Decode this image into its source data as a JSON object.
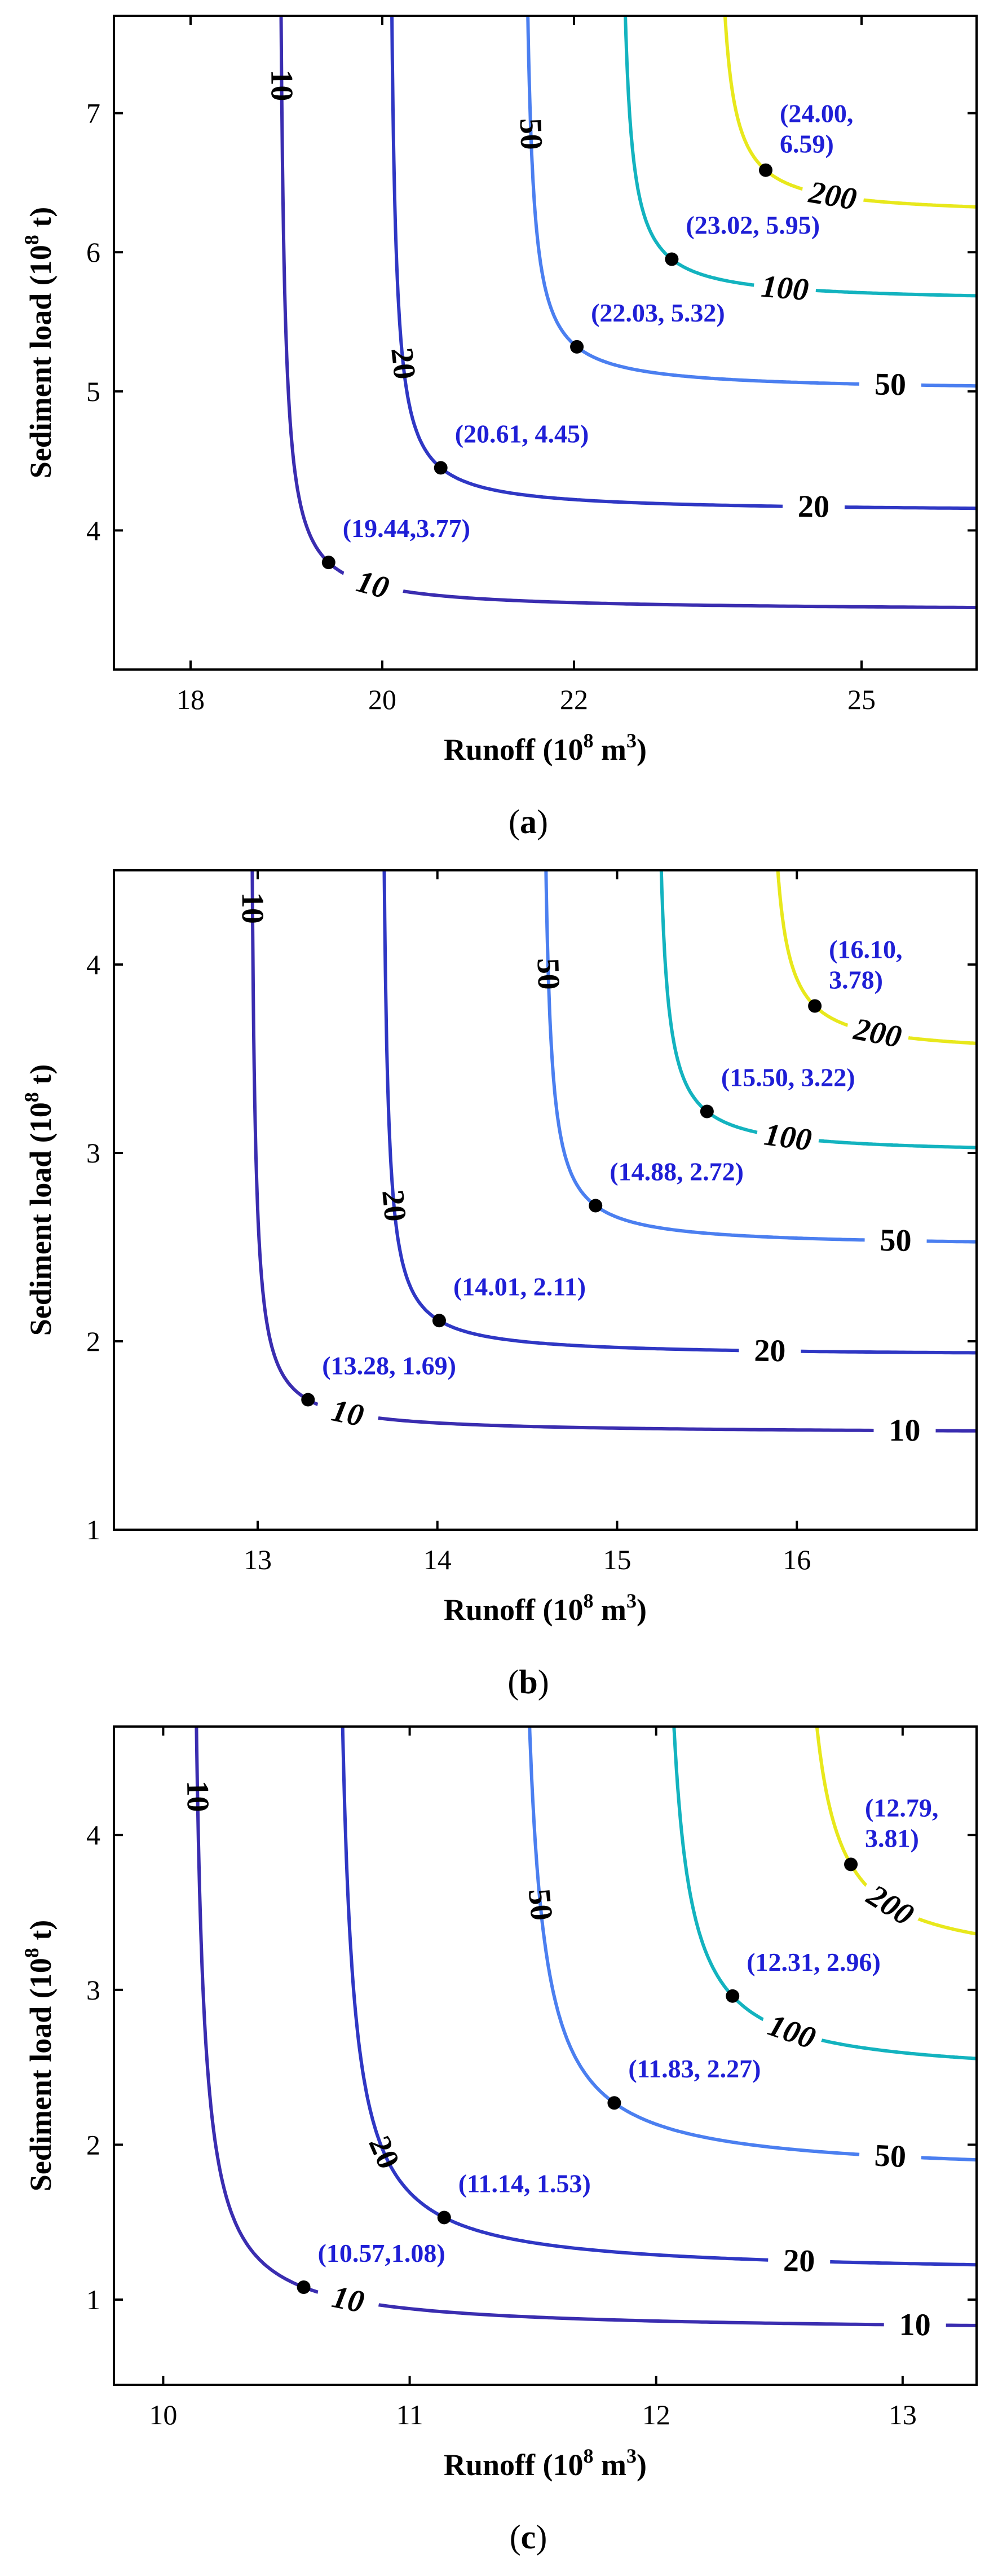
{
  "colors": {
    "10": "#3a2db0",
    "20": "#2f37c4",
    "50": "#4b7ff0",
    "100": "#13b3bf",
    "200": "#e8e81c",
    "annotation": "#1f1fd6"
  },
  "chart_data": [
    {
      "type": "contour",
      "panel_label": "(a)",
      "panel_letter": "a",
      "xlabel": "Runoff (10^8 m^3)",
      "xlabel_base": "Runoff (10",
      "xlabel_exp1": "8",
      "xlabel_mid": " m",
      "xlabel_exp2": "3",
      "xlabel_end": ")",
      "ylabel": "Sediment load (10^8 t)",
      "ylabel_base": "Sediment load (10",
      "ylabel_exp": "8",
      "ylabel_end": " t)",
      "xlim": [
        17.2,
        26.2
      ],
      "ylim": [
        3.0,
        7.7
      ],
      "xticks": [
        {
          "value": 18,
          "label": "18"
        },
        {
          "value": 20,
          "label": "20"
        },
        {
          "value": 22,
          "label": "22"
        },
        {
          "value": 25,
          "label": "25"
        }
      ],
      "yticks": [
        {
          "value": 4,
          "label": "4"
        },
        {
          "value": 5,
          "label": "5"
        },
        {
          "value": 6,
          "label": "6"
        },
        {
          "value": 7,
          "label": "7"
        }
      ],
      "contours": [
        {
          "level": 10,
          "label": "10",
          "color_key": "10",
          "x_asym": 18.9,
          "y_asym": 3.42,
          "point": [
            19.44,
            3.77
          ],
          "vlabel_y": 7.2,
          "hlabel_x": 19.9
        },
        {
          "level": 20,
          "label": "20",
          "color_key": "20",
          "x_asym": 20.05,
          "y_asym": 4.13,
          "point": [
            20.61,
            4.45
          ],
          "vlabel_y": 5.2,
          "hlabel_x": 24.5
        },
        {
          "level": 50,
          "label": "50",
          "color_key": "50",
          "x_asym": 21.45,
          "y_asym": 5.0,
          "point": [
            22.03,
            5.32
          ],
          "vlabel_y": 6.85,
          "hlabel_x": 25.3
        },
        {
          "level": 100,
          "label": "100",
          "color_key": "100",
          "x_asym": 22.45,
          "y_asym": 5.64,
          "point": [
            23.02,
            5.95
          ],
          "vlabel_y": null,
          "hlabel_x": 24.2
        },
        {
          "level": 200,
          "label": "200",
          "color_key": "200",
          "x_asym": 23.45,
          "y_asym": 6.26,
          "point": [
            24.0,
            6.59
          ],
          "vlabel_y": null,
          "hlabel_x": 24.7
        }
      ],
      "annotations": [
        {
          "text": "(19.44,3.77)"
        },
        {
          "text": "(20.61, 4.45)"
        },
        {
          "text": "(22.03, 5.32)"
        },
        {
          "text": "(23.02, 5.95)"
        },
        {
          "lines": [
            "(24.00,",
            "6.59)"
          ]
        }
      ]
    },
    {
      "type": "contour",
      "panel_label": "(b)",
      "panel_letter": "b",
      "xlabel": "Runoff (10^8 m^3)",
      "xlabel_base": "Runoff (10",
      "xlabel_exp1": "8",
      "xlabel_mid": " m",
      "xlabel_exp2": "3",
      "xlabel_end": ")",
      "ylabel": "Sediment load (10^8 t)",
      "ylabel_base": "Sediment load (10",
      "ylabel_exp": "8",
      "ylabel_end": " t)",
      "xlim": [
        12.2,
        17.0
      ],
      "ylim": [
        1.0,
        4.5
      ],
      "xticks": [
        {
          "value": 13,
          "label": "13"
        },
        {
          "value": 14,
          "label": "14"
        },
        {
          "value": 15,
          "label": "15"
        },
        {
          "value": 16,
          "label": "16"
        }
      ],
      "yticks": [
        {
          "value": 1,
          "label": "1"
        },
        {
          "value": 2,
          "label": "2"
        },
        {
          "value": 3,
          "label": "3"
        },
        {
          "value": 4,
          "label": "4"
        }
      ],
      "contours": [
        {
          "level": 10,
          "label": "10",
          "color_key": "10",
          "x_asym": 12.95,
          "y_asym": 1.51,
          "point": [
            13.28,
            1.69
          ],
          "vlabel_y": 4.3,
          "hlabel_x": 13.5,
          "hlabel2_x": 16.6
        },
        {
          "level": 20,
          "label": "20",
          "color_key": "20",
          "x_asym": 13.68,
          "y_asym": 1.92,
          "point": [
            14.01,
            2.11
          ],
          "vlabel_y": 2.72,
          "hlabel_x": 15.85
        },
        {
          "level": 50,
          "label": "50",
          "color_key": "50",
          "x_asym": 14.57,
          "y_asym": 2.5,
          "point": [
            14.88,
            2.72
          ],
          "vlabel_y": 3.95,
          "hlabel_x": 16.55
        },
        {
          "level": 100,
          "label": "100",
          "color_key": "100",
          "x_asym": 15.2,
          "y_asym": 2.99,
          "point": [
            15.5,
            3.22
          ],
          "vlabel_y": null,
          "hlabel_x": 15.95
        },
        {
          "level": 200,
          "label": "200",
          "color_key": "200",
          "x_asym": 15.82,
          "y_asym": 3.52,
          "point": [
            16.1,
            3.78
          ],
          "vlabel_y": null,
          "hlabel_x": 16.45
        }
      ],
      "annotations": [
        {
          "text": "(13.28, 1.69)"
        },
        {
          "text": "(14.01, 2.11)"
        },
        {
          "text": "(14.88, 2.72)"
        },
        {
          "text": "(15.50, 3.22)"
        },
        {
          "lines": [
            "(16.10,",
            "3.78)"
          ]
        }
      ]
    },
    {
      "type": "contour",
      "panel_label": "(c)",
      "panel_letter": "c",
      "xlabel": "Runoff (10^8 m^3)",
      "xlabel_base": "Runoff (10",
      "xlabel_exp1": "8",
      "xlabel_mid": " m",
      "xlabel_exp2": "3",
      "xlabel_end": ")",
      "ylabel": "Sediment load (10^8 t)",
      "ylabel_base": "Sediment load (10",
      "ylabel_exp": "8",
      "ylabel_end": " t)",
      "xlim": [
        9.8,
        13.3
      ],
      "ylim": [
        0.45,
        4.7
      ],
      "xticks": [
        {
          "value": 10,
          "label": "10"
        },
        {
          "value": 11,
          "label": "11"
        },
        {
          "value": 12,
          "label": "12"
        },
        {
          "value": 13,
          "label": "13"
        }
      ],
      "yticks": [
        {
          "value": 1,
          "label": "1"
        },
        {
          "value": 2,
          "label": "2"
        },
        {
          "value": 3,
          "label": "3"
        },
        {
          "value": 4,
          "label": "4"
        }
      ],
      "contours": [
        {
          "level": 10,
          "label": "10",
          "color_key": "10",
          "x_asym": 10.1,
          "y_asym": 0.79,
          "point": [
            10.57,
            1.08
          ],
          "vlabel_y": 4.25,
          "hlabel_x": 10.75,
          "hlabel2_x": 13.05
        },
        {
          "level": 20,
          "label": "20",
          "color_key": "20",
          "x_asym": 10.68,
          "y_asym": 1.16,
          "point": [
            11.14,
            1.53
          ],
          "vlabel_y": 1.95,
          "hlabel_x": 12.58
        },
        {
          "level": 50,
          "label": "50",
          "color_key": "50",
          "x_asym": 11.42,
          "y_asym": 1.8,
          "point": [
            11.83,
            2.27
          ],
          "vlabel_y": 3.55,
          "hlabel_x": 12.95
        },
        {
          "level": 100,
          "label": "100",
          "color_key": "100",
          "x_asym": 12.0,
          "y_asym": 2.43,
          "point": [
            12.31,
            2.96
          ],
          "vlabel_y": null,
          "hlabel_x": 12.55
        },
        {
          "level": 200,
          "label": "200",
          "color_key": "200",
          "x_asym": 12.55,
          "y_asym": 3.15,
          "point": [
            12.79,
            3.81
          ],
          "vlabel_y": null,
          "hlabel_x": 12.95
        }
      ],
      "annotations": [
        {
          "text": "(10.57,1.08)"
        },
        {
          "text": "(11.14, 1.53)"
        },
        {
          "text": "(11.83, 2.27)"
        },
        {
          "text": "(12.31, 2.96)"
        },
        {
          "lines": [
            "(12.79,",
            "3.81)"
          ]
        }
      ]
    }
  ]
}
